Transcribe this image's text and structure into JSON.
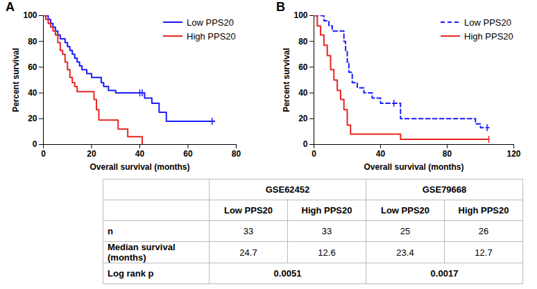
{
  "chart_data": [
    {
      "type": "step",
      "title": "A",
      "xlabel": "Overall survival (months)",
      "ylabel": "Percent survival",
      "xlim": [
        0,
        80
      ],
      "xticks": [
        0,
        20,
        40,
        60,
        80
      ],
      "ylim": [
        0,
        100
      ],
      "yticks": [
        0,
        20,
        40,
        60,
        80,
        100
      ],
      "grid": false,
      "legend": "top-right",
      "series": [
        {
          "name": "Low PPS20",
          "color": "#1a1aff",
          "line_style": "solid",
          "x": [
            0,
            2,
            3,
            4,
            5,
            6,
            7,
            9,
            10,
            11,
            12,
            13,
            14,
            15,
            16,
            18,
            20,
            24,
            25,
            27,
            30,
            42,
            45,
            48,
            51,
            71
          ],
          "values": [
            100,
            97,
            94,
            91,
            88,
            85,
            82,
            79,
            76,
            73,
            70,
            67,
            64,
            61,
            58,
            55,
            52,
            48,
            45,
            42,
            40,
            36,
            32,
            25,
            18,
            18
          ],
          "censored_x": [
            40,
            41,
            70
          ],
          "censored_y": [
            40,
            40,
            18
          ]
        },
        {
          "name": "High PPS20",
          "color": "#e8251f",
          "line_style": "solid",
          "x": [
            0,
            1,
            2,
            3,
            4,
            5,
            6,
            7,
            8,
            9,
            10,
            11,
            12,
            13,
            14,
            21,
            22,
            23,
            31,
            35,
            41
          ],
          "values": [
            100,
            97,
            94,
            91,
            88,
            85,
            79,
            73,
            70,
            64,
            58,
            52,
            48,
            45,
            41,
            35,
            27,
            19,
            12,
            6,
            0
          ],
          "censored_x": [],
          "censored_y": []
        }
      ]
    },
    {
      "type": "step",
      "title": "B",
      "xlabel": "Overall survival (months)",
      "ylabel": "Percent survival",
      "xlim": [
        0,
        120
      ],
      "xticks": [
        0,
        40,
        80,
        120
      ],
      "ylim": [
        0,
        100
      ],
      "yticks": [
        0,
        20,
        40,
        60,
        80,
        100
      ],
      "grid": false,
      "legend": "top-right",
      "series": [
        {
          "name": "Low PPS20",
          "color": "#1a1aff",
          "line_style": "dashed",
          "x": [
            0,
            6,
            9,
            11,
            18,
            19,
            20,
            21,
            23,
            26,
            30,
            35,
            40,
            52,
            97,
            100,
            105
          ],
          "values": [
            100,
            96,
            92,
            88,
            80,
            72,
            64,
            56,
            48,
            44,
            40,
            36,
            32,
            20,
            16,
            13,
            13
          ],
          "censored_x": [
            48,
            104
          ],
          "censored_y": [
            32,
            13
          ]
        },
        {
          "name": "High PPS20",
          "color": "#e8251f",
          "line_style": "solid",
          "x": [
            0,
            2,
            4,
            6,
            8,
            10,
            12,
            14,
            16,
            18,
            20,
            22,
            52,
            105
          ],
          "values": [
            100,
            92,
            85,
            77,
            69,
            58,
            50,
            42,
            35,
            27,
            15,
            8,
            4,
            4
          ],
          "censored_x": [
            105
          ],
          "censored_y": [
            4
          ]
        }
      ]
    }
  ],
  "table": {
    "groups": [
      {
        "dataset": "GSE62452",
        "columns": [
          "Low PPS20",
          "High PPS20"
        ]
      },
      {
        "dataset": "GSE79668",
        "columns": [
          "Low PPS20",
          "High PPS20"
        ]
      }
    ],
    "rows": [
      {
        "label": "n",
        "values": [
          33,
          33,
          25,
          26
        ]
      },
      {
        "label": "Median survival (months)",
        "values": [
          24.7,
          12.6,
          23.4,
          12.7
        ]
      },
      {
        "label": "Log rank p",
        "values": [
          0.0051,
          0.0017
        ],
        "span": 2
      }
    ]
  }
}
